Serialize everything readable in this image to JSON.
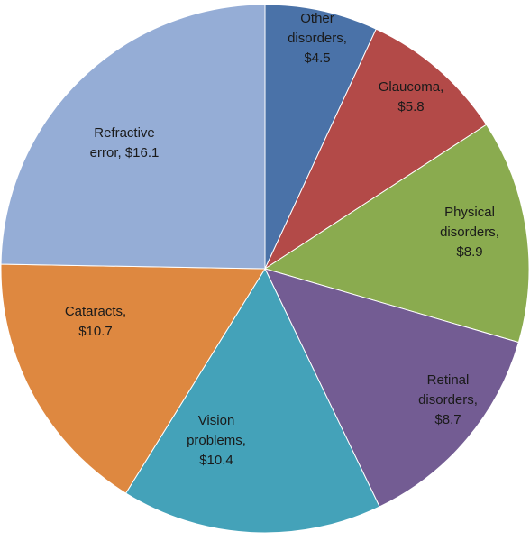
{
  "chart_data": {
    "type": "pie",
    "title": "",
    "slices": [
      {
        "label_lines": [
          "Other",
          "disorders,",
          "$4.5"
        ],
        "category": "Other disorders",
        "value": 4.5,
        "color": "#4a72a8"
      },
      {
        "label_lines": [
          "Glaucoma,",
          "$5.8"
        ],
        "category": "Glaucoma",
        "value": 5.8,
        "color": "#b34a48"
      },
      {
        "label_lines": [
          "Physical",
          "disorders,",
          "$8.9"
        ],
        "category": "Physical disorders",
        "value": 8.9,
        "color": "#8aab4f"
      },
      {
        "label_lines": [
          "Retinal",
          "disorders,",
          "$8.7"
        ],
        "category": "Retinal disorders",
        "value": 8.7,
        "color": "#735c93"
      },
      {
        "label_lines": [
          "Vision",
          "problems,",
          "$10.4"
        ],
        "category": "Vision problems",
        "value": 10.4,
        "color": "#44a2b9"
      },
      {
        "label_lines": [
          "Cataracts,",
          "$10.7"
        ],
        "category": "Cataracts",
        "value": 10.7,
        "color": "#de8840"
      },
      {
        "label_lines": [
          "Refractive",
          "error, $16.1"
        ],
        "category": "Refractive error",
        "value": 16.1,
        "color": "#95add6"
      }
    ],
    "start_angle": "12 o'clock",
    "direction": "clockwise",
    "legend": "none",
    "data_labels": "inside slices"
  }
}
